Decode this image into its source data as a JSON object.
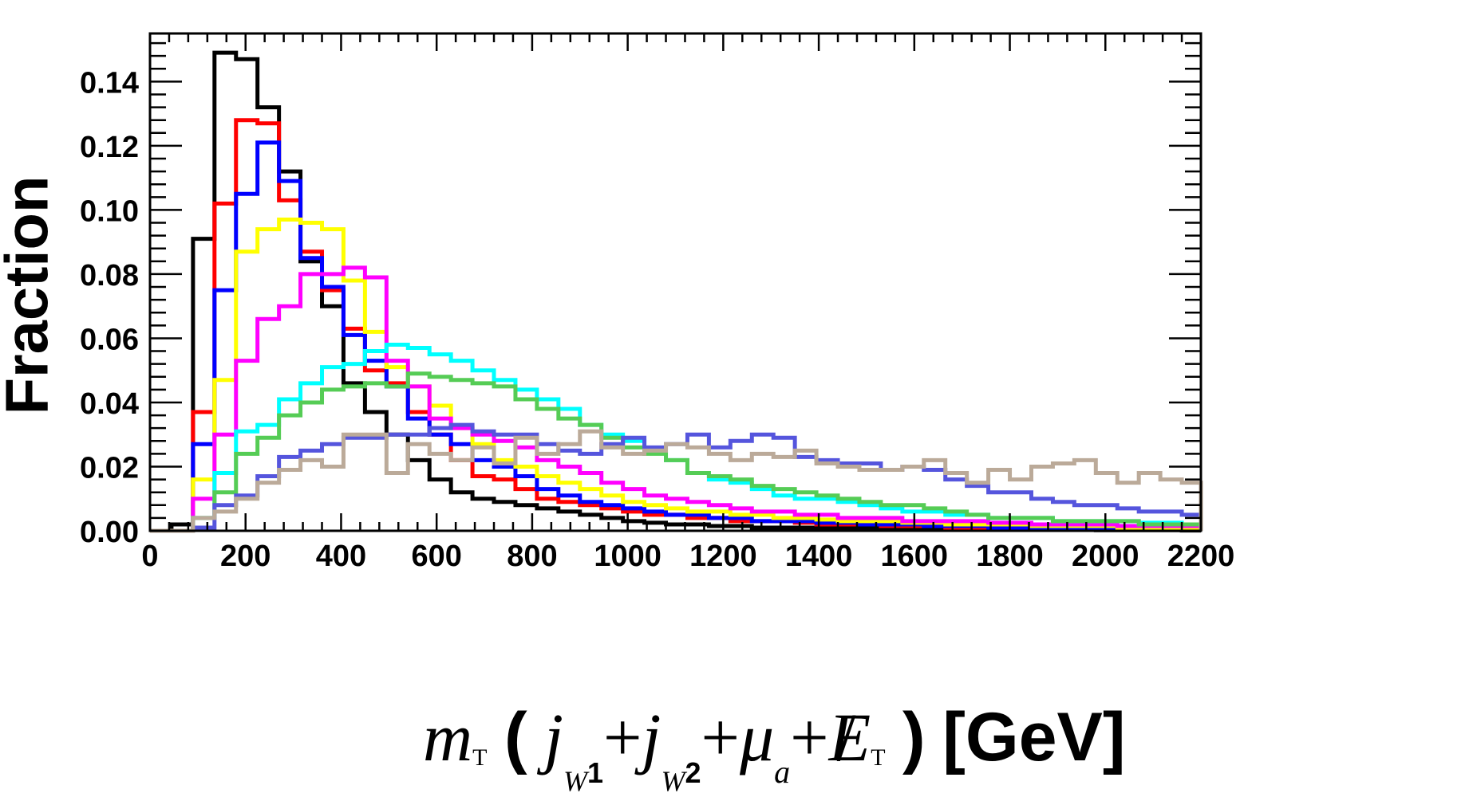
{
  "chart_data": {
    "type": "line",
    "style": "step-histogram",
    "ylabel": "Fraction",
    "xlabel": {
      "m": "m",
      "T": "T",
      "j": "j",
      "w1_w": "W",
      "w1_n": "1",
      "w2_w": "W",
      "w2_n": "2",
      "mu": "μ",
      "a": "a",
      "E": "E",
      "plus": "+",
      "open": "(",
      "close": ")",
      "units": "[GeV]"
    },
    "xlim": [
      0,
      2200
    ],
    "ylim": [
      0,
      0.155
    ],
    "bin_width": 45,
    "x_ticks": [
      "0",
      "200",
      "400",
      "600",
      "800",
      "1000",
      "1200",
      "1400",
      "1600",
      "1800",
      "2000",
      "2200"
    ],
    "y_ticks": [
      "0.00",
      "0.02",
      "0.04",
      "0.06",
      "0.08",
      "0.10",
      "0.12",
      "0.14"
    ],
    "series": [
      {
        "name": "black",
        "color": "#000000",
        "values": [
          0.0,
          0.002,
          0.091,
          0.149,
          0.147,
          0.132,
          0.112,
          0.084,
          0.07,
          0.046,
          0.037,
          0.03,
          0.022,
          0.016,
          0.012,
          0.01,
          0.009,
          0.008,
          0.007,
          0.006,
          0.005,
          0.004,
          0.003,
          0.0025,
          0.002,
          0.002,
          0.0015,
          0.0015,
          0.001,
          0.001,
          0.001,
          0.001,
          0.0008,
          0.0008,
          0.0006,
          0.0006,
          0.0005,
          0.0005,
          0.0004,
          0.0004,
          0.0004,
          0.0003,
          0.0003,
          0.0003,
          0.0002,
          0.0002,
          0.0002,
          0.0002,
          0.0001
        ]
      },
      {
        "name": "red",
        "color": "#ff0000",
        "values": [
          0.0,
          0.0,
          0.037,
          0.102,
          0.128,
          0.127,
          0.103,
          0.087,
          0.075,
          0.063,
          0.05,
          0.046,
          0.037,
          0.03,
          0.022,
          0.017,
          0.016,
          0.013,
          0.01,
          0.009,
          0.008,
          0.007,
          0.006,
          0.005,
          0.005,
          0.004,
          0.004,
          0.003,
          0.003,
          0.003,
          0.0025,
          0.002,
          0.002,
          0.002,
          0.0015,
          0.0015,
          0.0015,
          0.001,
          0.001,
          0.001,
          0.001,
          0.0008,
          0.0008,
          0.0008,
          0.0006,
          0.0006,
          0.0006,
          0.0005,
          0.0005
        ]
      },
      {
        "name": "blue",
        "color": "#0000ff",
        "values": [
          0.0,
          0.0,
          0.027,
          0.075,
          0.105,
          0.121,
          0.109,
          0.085,
          0.076,
          0.061,
          0.053,
          0.045,
          0.035,
          0.03,
          0.027,
          0.022,
          0.02,
          0.017,
          0.013,
          0.011,
          0.009,
          0.008,
          0.007,
          0.006,
          0.005,
          0.005,
          0.004,
          0.004,
          0.003,
          0.003,
          0.003,
          0.0025,
          0.0025,
          0.002,
          0.002,
          0.002,
          0.0015,
          0.0015,
          0.0015,
          0.001,
          0.001,
          0.001,
          0.001,
          0.001,
          0.0008,
          0.0008,
          0.0008,
          0.0006,
          0.0006
        ]
      },
      {
        "name": "yellow",
        "color": "#ffff00",
        "values": [
          0.0,
          0.0,
          0.016,
          0.047,
          0.087,
          0.094,
          0.097,
          0.096,
          0.094,
          0.078,
          0.062,
          0.051,
          0.045,
          0.039,
          0.032,
          0.027,
          0.022,
          0.02,
          0.017,
          0.015,
          0.013,
          0.011,
          0.009,
          0.008,
          0.007,
          0.006,
          0.006,
          0.005,
          0.005,
          0.004,
          0.004,
          0.0035,
          0.003,
          0.003,
          0.003,
          0.0025,
          0.0025,
          0.002,
          0.002,
          0.002,
          0.002,
          0.0015,
          0.0015,
          0.0015,
          0.0015,
          0.001,
          0.001,
          0.001,
          0.001
        ]
      },
      {
        "name": "magenta",
        "color": "#ff00ff",
        "values": [
          0.0,
          0.0,
          0.01,
          0.03,
          0.053,
          0.066,
          0.07,
          0.08,
          0.08,
          0.082,
          0.079,
          0.053,
          0.045,
          0.035,
          0.032,
          0.03,
          0.028,
          0.026,
          0.022,
          0.02,
          0.018,
          0.015,
          0.013,
          0.011,
          0.01,
          0.009,
          0.008,
          0.007,
          0.006,
          0.006,
          0.005,
          0.005,
          0.004,
          0.004,
          0.004,
          0.003,
          0.003,
          0.003,
          0.003,
          0.0025,
          0.0025,
          0.002,
          0.002,
          0.002,
          0.002,
          0.0015,
          0.0015,
          0.0015,
          0.0015
        ]
      },
      {
        "name": "cyan",
        "color": "#00ffff",
        "values": [
          0.0,
          0.0,
          0.004,
          0.018,
          0.031,
          0.033,
          0.041,
          0.046,
          0.051,
          0.052,
          0.056,
          0.058,
          0.057,
          0.055,
          0.053,
          0.05,
          0.047,
          0.044,
          0.041,
          0.038,
          0.033,
          0.03,
          0.028,
          0.025,
          0.022,
          0.018,
          0.016,
          0.015,
          0.013,
          0.011,
          0.01,
          0.01,
          0.009,
          0.008,
          0.007,
          0.006,
          0.006,
          0.005,
          0.005,
          0.004,
          0.004,
          0.004,
          0.003,
          0.003,
          0.003,
          0.003,
          0.0025,
          0.0025,
          0.002
        ]
      },
      {
        "name": "green",
        "color": "#55cc55",
        "values": [
          0.0,
          0.0,
          0.004,
          0.012,
          0.024,
          0.029,
          0.036,
          0.04,
          0.044,
          0.045,
          0.046,
          0.045,
          0.049,
          0.048,
          0.047,
          0.046,
          0.045,
          0.041,
          0.038,
          0.035,
          0.033,
          0.029,
          0.026,
          0.024,
          0.022,
          0.018,
          0.017,
          0.016,
          0.014,
          0.013,
          0.012,
          0.011,
          0.01,
          0.009,
          0.008,
          0.008,
          0.007,
          0.006,
          0.005,
          0.004,
          0.004,
          0.004,
          0.003,
          0.003,
          0.003,
          0.003,
          0.002,
          0.002,
          0.002
        ]
      },
      {
        "name": "slate-blue",
        "color": "#5555dd",
        "values": [
          0.0,
          0.0,
          0.001,
          0.008,
          0.011,
          0.017,
          0.023,
          0.025,
          0.027,
          0.029,
          0.029,
          0.03,
          0.03,
          0.032,
          0.033,
          0.031,
          0.03,
          0.03,
          0.027,
          0.025,
          0.024,
          0.027,
          0.029,
          0.026,
          0.027,
          0.03,
          0.026,
          0.028,
          0.03,
          0.029,
          0.023,
          0.022,
          0.021,
          0.021,
          0.019,
          0.02,
          0.019,
          0.016,
          0.014,
          0.012,
          0.012,
          0.01,
          0.009,
          0.008,
          0.008,
          0.007,
          0.006,
          0.006,
          0.005
        ]
      },
      {
        "name": "tan",
        "color": "#bbaa99",
        "values": [
          0.0,
          0.0,
          0.004,
          0.006,
          0.01,
          0.015,
          0.019,
          0.022,
          0.02,
          0.03,
          0.03,
          0.018,
          0.027,
          0.024,
          0.022,
          0.026,
          0.021,
          0.029,
          0.024,
          0.027,
          0.031,
          0.026,
          0.024,
          0.025,
          0.027,
          0.026,
          0.024,
          0.022,
          0.024,
          0.023,
          0.025,
          0.021,
          0.02,
          0.019,
          0.019,
          0.02,
          0.022,
          0.018,
          0.015,
          0.019,
          0.016,
          0.02,
          0.021,
          0.022,
          0.018,
          0.015,
          0.018,
          0.016,
          0.015
        ]
      }
    ]
  }
}
